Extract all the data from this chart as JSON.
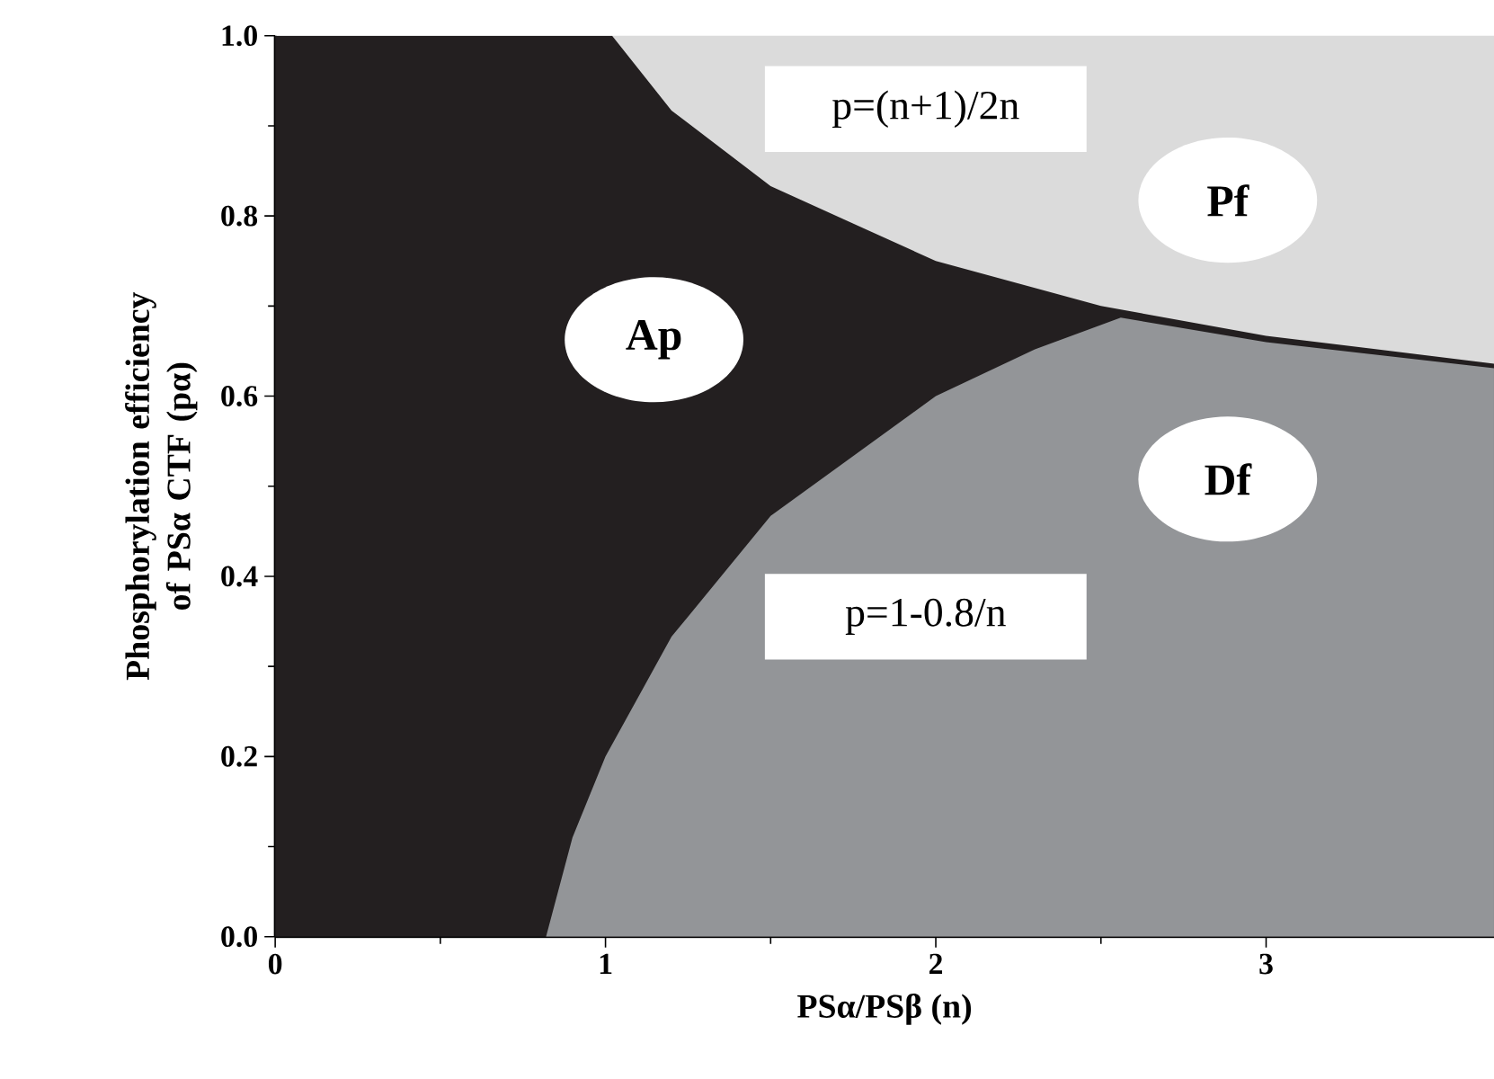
{
  "chart_data": {
    "type": "area",
    "xlabel": "PSα/PSβ (n)",
    "ylabel": "Phosphorylation efficiency\nof PSα CTF (pα)",
    "xlim": [
      0,
      3.69
    ],
    "ylim": [
      0,
      1.0
    ],
    "xticks": [
      0,
      1,
      2,
      3
    ],
    "yticks": [
      {
        "value": 0,
        "label": "0.0"
      },
      {
        "value": 0.2,
        "label": "0.2"
      },
      {
        "value": 0.4,
        "label": "0.4"
      },
      {
        "value": 0.6,
        "label": "0.6"
      },
      {
        "value": 0.8,
        "label": "0.8"
      },
      {
        "value": 1.0,
        "label": "1.0"
      }
    ],
    "series": [
      {
        "color": "#231f20",
        "x": [
          0,
          1.02,
          1.2,
          1.5,
          2,
          2.5,
          3,
          3.69
        ],
        "values": [
          1.0,
          1.0,
          0.917,
          0.833,
          0.75,
          0.7,
          0.667,
          0.636
        ]
      },
      {
        "color": "#939598",
        "x": [
          0.82,
          0.9,
          1.0,
          1.2,
          1.5,
          2.0,
          2.3,
          2.56,
          3.0,
          3.69
        ],
        "values": [
          0,
          0.11,
          0.2,
          0.333,
          0.467,
          0.6,
          0.652,
          0.687,
          0.66,
          0.631
        ]
      }
    ],
    "annotations": [
      "Ap",
      "Pf",
      "Df",
      "p=(n+1)/2n",
      "p=1-0.8/n"
    ]
  }
}
